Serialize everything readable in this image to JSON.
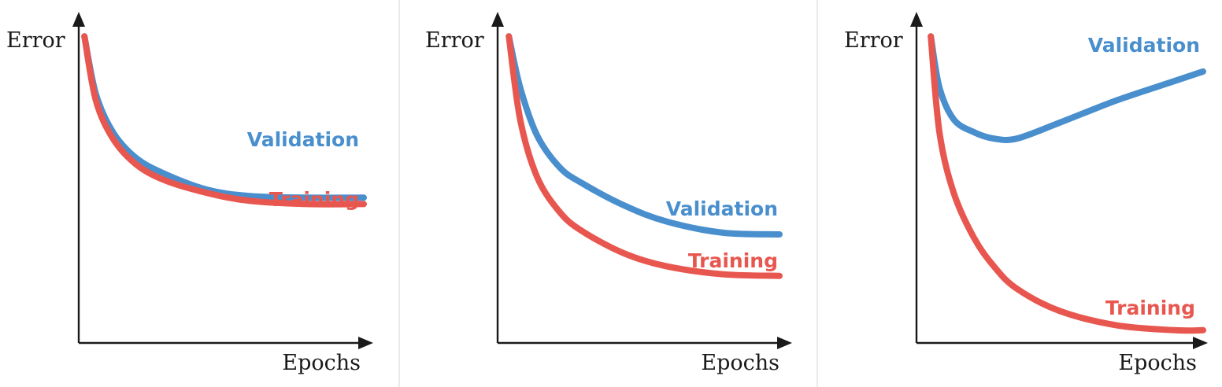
{
  "colors": {
    "validation": "#4a8fcd",
    "training": "#e8574f",
    "axis": "#1a1a1a"
  },
  "chart_data": [
    {
      "type": "line",
      "xlabel": "Epochs",
      "ylabel": "Error",
      "axis_ticks": false,
      "grid": false,
      "series": [
        {
          "name": "Validation",
          "color": "#4a8fcd",
          "x": [
            0.02,
            0.06,
            0.12,
            0.2,
            0.3,
            0.45,
            0.6,
            0.8,
            1.0
          ],
          "y": [
            0.96,
            0.78,
            0.66,
            0.58,
            0.53,
            0.48,
            0.46,
            0.455,
            0.455
          ]
        },
        {
          "name": "Training",
          "color": "#e8574f",
          "x": [
            0.02,
            0.06,
            0.12,
            0.2,
            0.3,
            0.45,
            0.6,
            0.8,
            1.0
          ],
          "y": [
            0.96,
            0.76,
            0.64,
            0.56,
            0.51,
            0.47,
            0.445,
            0.435,
            0.435
          ]
        }
      ]
    },
    {
      "type": "line",
      "xlabel": "Epochs",
      "ylabel": "Error",
      "axis_ticks": false,
      "grid": false,
      "series": [
        {
          "name": "Validation",
          "color": "#4a8fcd",
          "x": [
            0.04,
            0.08,
            0.14,
            0.22,
            0.3,
            0.45,
            0.6,
            0.8,
            1.0
          ],
          "y": [
            0.96,
            0.8,
            0.65,
            0.55,
            0.5,
            0.43,
            0.38,
            0.345,
            0.34
          ]
        },
        {
          "name": "Training",
          "color": "#e8574f",
          "x": [
            0.04,
            0.08,
            0.14,
            0.22,
            0.3,
            0.45,
            0.6,
            0.8,
            1.0
          ],
          "y": [
            0.96,
            0.7,
            0.52,
            0.41,
            0.35,
            0.28,
            0.24,
            0.215,
            0.21
          ]
        }
      ]
    },
    {
      "type": "line",
      "xlabel": "Epochs",
      "ylabel": "Error",
      "axis_ticks": false,
      "grid": false,
      "series": [
        {
          "name": "Validation",
          "color": "#4a8fcd",
          "x": [
            0.05,
            0.08,
            0.13,
            0.2,
            0.27,
            0.35,
            0.5,
            0.7,
            0.9,
            1.0
          ],
          "y": [
            0.96,
            0.8,
            0.7,
            0.66,
            0.64,
            0.64,
            0.69,
            0.76,
            0.82,
            0.85
          ]
        },
        {
          "name": "Training",
          "color": "#e8574f",
          "x": [
            0.05,
            0.08,
            0.13,
            0.2,
            0.27,
            0.35,
            0.5,
            0.7,
            0.9,
            1.0
          ],
          "y": [
            0.96,
            0.66,
            0.47,
            0.33,
            0.24,
            0.17,
            0.1,
            0.055,
            0.04,
            0.04
          ]
        }
      ]
    }
  ]
}
